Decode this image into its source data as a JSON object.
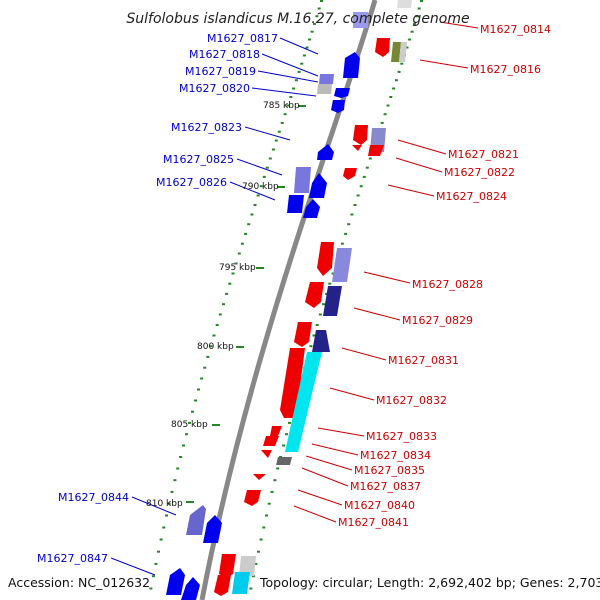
{
  "title": "Sulfolobus islandicus M.16.27, complete genome",
  "footer": {
    "accession": "Accession: NC_012632",
    "topology": "Topology: circular; Length: 2,692,402 bp; Genes: 2,703"
  },
  "colors": {
    "forward_strand": "#ff0000",
    "reverse_strand": "#0000ff",
    "rna_like": "#00e5ee",
    "backbone": "#888888",
    "minor_tick": "#228822",
    "major_tick": "#228822"
  },
  "ticks": [
    {
      "label": "785 kbp",
      "kbp": 785
    },
    {
      "label": "790 kbp",
      "kbp": 790
    },
    {
      "label": "795 kbp",
      "kbp": 795
    },
    {
      "label": "800 kbp",
      "kbp": 800
    },
    {
      "label": "805 kbp",
      "kbp": 805
    },
    {
      "label": "810 kbp",
      "kbp": 810
    }
  ],
  "reverse_genes": [
    {
      "label": "M1627_0817"
    },
    {
      "label": "M1627_0818"
    },
    {
      "label": "M1627_0819"
    },
    {
      "label": "M1627_0820"
    },
    {
      "label": "M1627_0823"
    },
    {
      "label": "M1627_0825"
    },
    {
      "label": "M1627_0826"
    },
    {
      "label": "M1627_0844"
    },
    {
      "label": "M1627_0847"
    }
  ],
  "forward_genes": [
    {
      "label": "M1627_0814"
    },
    {
      "label": "M1627_0816"
    },
    {
      "label": "M1627_0821"
    },
    {
      "label": "M1627_0822"
    },
    {
      "label": "M1627_0824"
    },
    {
      "label": "M1627_0828"
    },
    {
      "label": "M1627_0829"
    },
    {
      "label": "M1627_0831"
    },
    {
      "label": "M1627_0832"
    },
    {
      "label": "M1627_0833"
    },
    {
      "label": "M1627_0834"
    },
    {
      "label": "M1627_0835"
    },
    {
      "label": "M1627_0837"
    },
    {
      "label": "M1627_0840"
    },
    {
      "label": "M1627_0841"
    }
  ]
}
